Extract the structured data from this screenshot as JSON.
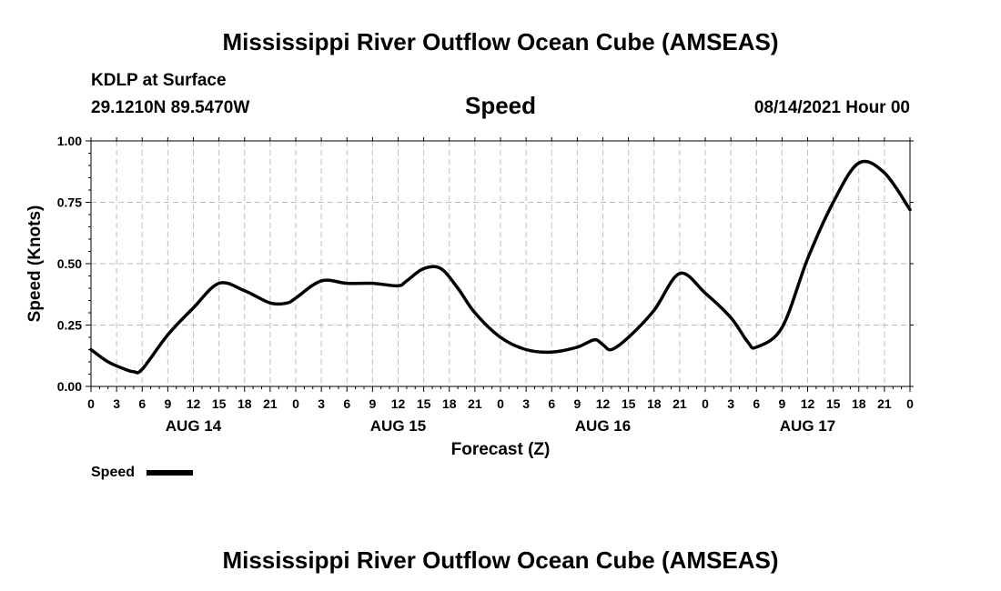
{
  "header": {
    "title": "Mississippi River Outflow Ocean Cube (AMSEAS)",
    "station": "KDLP at Surface",
    "coords": "29.1210N  89.5470W",
    "variable": "Speed",
    "datetime": "08/14/2021 Hour 00"
  },
  "footer": {
    "title": "Mississippi River Outflow Ocean Cube (AMSEAS)"
  },
  "chart_data": {
    "type": "line",
    "title": "Speed",
    "xlabel": "Forecast (Z)",
    "ylabel": "Speed (Knots)",
    "xlim": [
      0,
      96
    ],
    "ylim": [
      0,
      1
    ],
    "yticks": [
      "0.00",
      "0.25",
      "0.50",
      "0.75",
      "1.00"
    ],
    "ytick_values": [
      0,
      0.25,
      0.5,
      0.75,
      1
    ],
    "xtick_labels": [
      "0",
      "3",
      "6",
      "9",
      "12",
      "15",
      "18",
      "21",
      "0",
      "3",
      "6",
      "9",
      "12",
      "15",
      "18",
      "21",
      "0",
      "3",
      "6",
      "9",
      "12",
      "15",
      "18",
      "21",
      "0",
      "3",
      "6",
      "9",
      "12",
      "15",
      "18",
      "21",
      "0"
    ],
    "day_labels": [
      {
        "label": "AUG 14",
        "hour": 12
      },
      {
        "label": "AUG 15",
        "hour": 36
      },
      {
        "label": "AUG 16",
        "hour": 60
      },
      {
        "label": "AUG 17",
        "hour": 84
      }
    ],
    "grid": true,
    "legend": {
      "position": "bottom-left",
      "entries": [
        "Speed"
      ]
    },
    "series": [
      {
        "name": "Speed",
        "color": "#000000",
        "x": [
          0,
          2,
          4,
          5,
          6,
          9,
          12,
          15,
          18,
          21,
          23,
          24,
          27,
          30,
          33,
          36,
          37,
          39,
          41,
          43,
          45,
          48,
          51,
          54,
          57,
          59,
          60,
          61,
          63,
          66,
          69,
          72,
          75,
          77,
          78,
          81,
          84,
          87,
          90,
          93,
          96
        ],
        "values": [
          0.15,
          0.1,
          0.07,
          0.06,
          0.07,
          0.21,
          0.32,
          0.42,
          0.39,
          0.34,
          0.34,
          0.36,
          0.43,
          0.42,
          0.42,
          0.41,
          0.43,
          0.48,
          0.48,
          0.4,
          0.3,
          0.2,
          0.15,
          0.14,
          0.16,
          0.19,
          0.17,
          0.15,
          0.2,
          0.31,
          0.46,
          0.38,
          0.28,
          0.18,
          0.16,
          0.24,
          0.52,
          0.75,
          0.91,
          0.87,
          0.72
        ]
      }
    ]
  }
}
